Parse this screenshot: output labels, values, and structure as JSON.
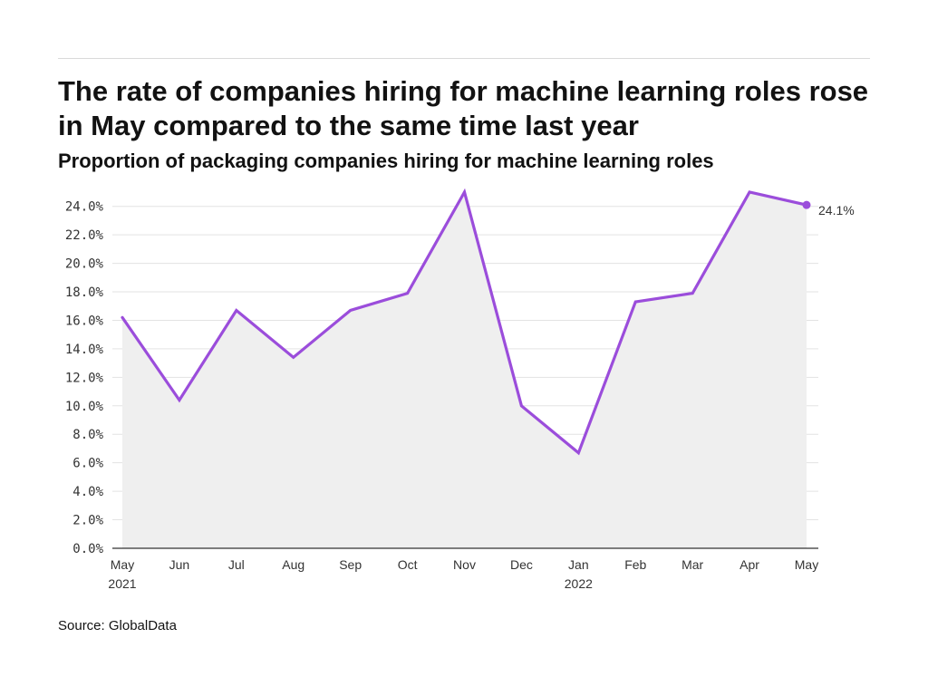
{
  "header": {
    "title": "The rate of companies hiring for machine learning roles rose in May compared to the same time last year",
    "subtitle": "Proportion of packaging companies hiring for machine learning roles"
  },
  "footer": {
    "source": "Source: GlobalData"
  },
  "colors": {
    "line": "#9b4ddb",
    "area": "#efefef",
    "grid": "#e3e3e3",
    "axis": "#333333"
  },
  "chart_data": {
    "type": "area",
    "title": "The rate of companies hiring for machine learning roles rose in May compared to the same time last year",
    "subtitle": "Proportion of packaging companies hiring for machine learning roles",
    "categories": [
      "May 2021",
      "Jun 2021",
      "Jul 2021",
      "Aug 2021",
      "Sep 2021",
      "Oct 2021",
      "Nov 2021",
      "Dec 2021",
      "Jan 2022",
      "Feb 2022",
      "Mar 2022",
      "Apr 2022",
      "May 2022"
    ],
    "x_tick_labels": [
      [
        "May",
        "2021"
      ],
      [
        "Jun"
      ],
      [
        "Jul"
      ],
      [
        "Aug"
      ],
      [
        "Sep"
      ],
      [
        "Oct"
      ],
      [
        "Nov"
      ],
      [
        "Dec"
      ],
      [
        "Jan",
        "2022"
      ],
      [
        "Feb"
      ],
      [
        "Mar"
      ],
      [
        "Apr"
      ],
      [
        "May"
      ]
    ],
    "series": [
      {
        "values": [
          16.2,
          10.4,
          16.7,
          13.4,
          16.7,
          17.9,
          25.0,
          10.0,
          6.7,
          17.3,
          17.9,
          25.0,
          24.1
        ]
      }
    ],
    "end_label": "24.1%",
    "ylim": [
      0,
      25
    ],
    "y_ticks": [
      0,
      2,
      4,
      6,
      8,
      10,
      12,
      14,
      16,
      18,
      20,
      22,
      24
    ],
    "y_tick_labels": [
      "0.0%",
      "2.0%",
      "4.0%",
      "6.0%",
      "8.0%",
      "10.0%",
      "12.0%",
      "14.0%",
      "16.0%",
      "18.0%",
      "20.0%",
      "22.0%",
      "24.0%"
    ],
    "xlabel": "",
    "ylabel": "",
    "grid": true,
    "legend": "none"
  }
}
